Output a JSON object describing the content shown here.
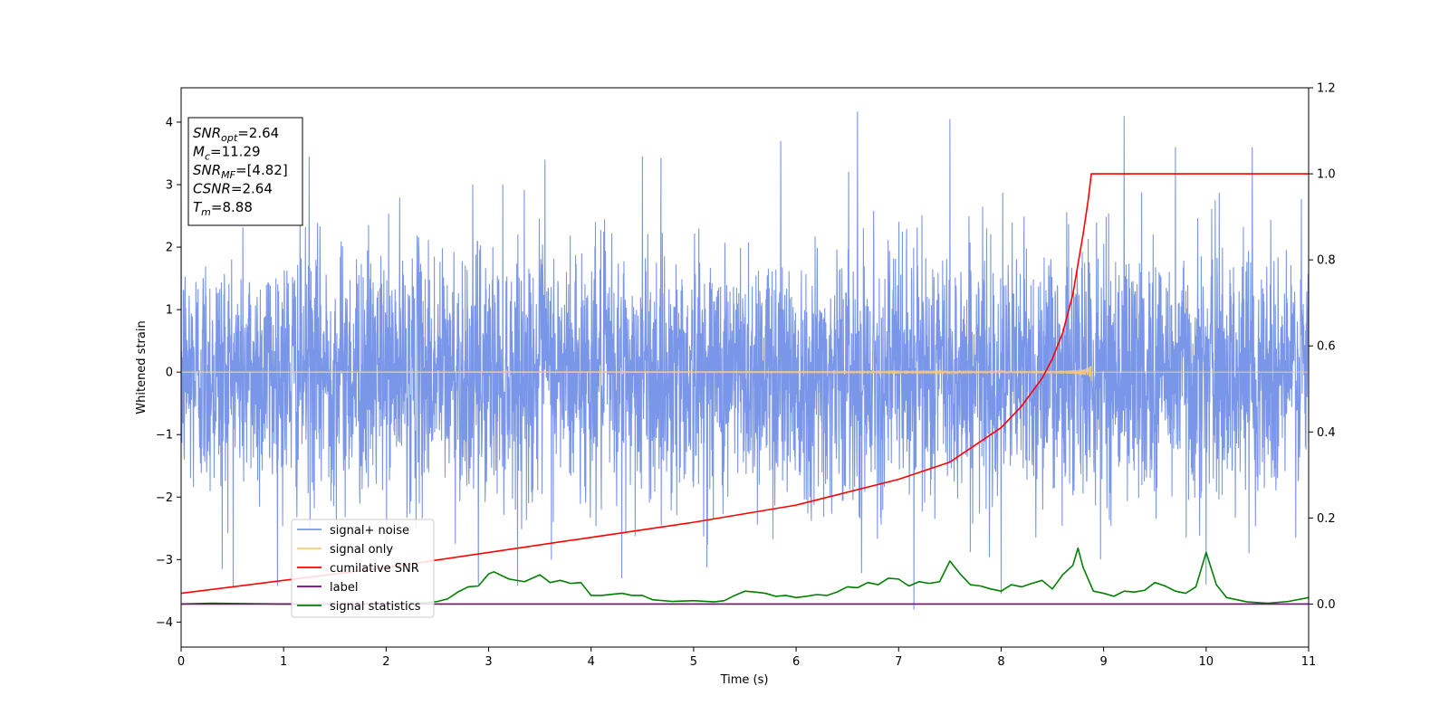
{
  "chart_data": {
    "type": "line",
    "xlabel": "Time (s)",
    "ylabel_left": "Whitened strain",
    "ylabel_right": "",
    "xlim": [
      0,
      11
    ],
    "ylim_left": [
      -4.4,
      4.55
    ],
    "ylim_right": [
      -0.1,
      1.2
    ],
    "x_ticks": [
      0,
      1,
      2,
      3,
      4,
      5,
      6,
      7,
      8,
      9,
      10,
      11
    ],
    "y_left_ticks": [
      -4,
      -3,
      -2,
      -1,
      0,
      1,
      2,
      3,
      4
    ],
    "y_right_ticks": [
      0.0,
      0.2,
      0.4,
      0.6,
      0.8,
      1.0,
      1.2
    ],
    "x_tick_labels": [
      "0",
      "1",
      "2",
      "3",
      "4",
      "5",
      "6",
      "7",
      "8",
      "9",
      "10",
      "11"
    ],
    "y_left_tick_labels": [
      "−4",
      "−3",
      "−2",
      "−1",
      "0",
      "1",
      "2",
      "3",
      "4"
    ],
    "y_right_tick_labels": [
      "0.0",
      "0.2",
      "0.4",
      "0.6",
      "0.8",
      "1.0",
      "1.2"
    ],
    "grid": false,
    "legend_position": "lower-left",
    "annotation_box": {
      "lines": [
        {
          "sym": "SNR",
          "sub": "opt",
          "rest": "=2.64"
        },
        {
          "sym": "M",
          "sub": "c",
          "rest": "=11.29"
        },
        {
          "sym": "SNR",
          "sub": "MF",
          "rest": "=[4.82]"
        },
        {
          "sym": "CSNR",
          "sub": "",
          "rest": "=2.64"
        },
        {
          "sym": "T",
          "sub": "m",
          "rest": "=8.88"
        }
      ]
    },
    "series": [
      {
        "name": "signal+ noise",
        "color": "#7a96e8",
        "axis": "left",
        "kind": "noise",
        "x_range": [
          0,
          11
        ],
        "std": 1.0,
        "y_min": -3.8,
        "y_max": 4.17,
        "peaks": [
          [
            6.6,
            4.17
          ],
          [
            9.2,
            4.1
          ],
          [
            7.5,
            4.05
          ],
          [
            10.45,
            3.6
          ],
          [
            9.7,
            3.6
          ],
          [
            1.25,
            3.45
          ],
          [
            4.5,
            3.45
          ],
          [
            5.85,
            3.7
          ],
          [
            3.55,
            3.4
          ],
          [
            7.15,
            -3.8
          ],
          [
            4.3,
            -3.3
          ],
          [
            8.0,
            -3.55
          ],
          [
            10.0,
            -3.4
          ],
          [
            2.9,
            -3.4
          ],
          [
            0.4,
            -3.15
          ]
        ]
      },
      {
        "name": "signal only",
        "color": "#fdc87a",
        "axis": "left",
        "kind": "chirp",
        "merger_time": 8.88,
        "peak_amplitude": 0.55
      },
      {
        "name": "cumilative SNR",
        "color": "#ff0000",
        "axis": "right",
        "x": [
          0,
          1,
          2,
          3,
          4,
          5,
          6,
          7,
          7.5,
          8,
          8.2,
          8.4,
          8.5,
          8.6,
          8.7,
          8.8,
          8.85,
          8.88,
          9,
          10,
          11
        ],
        "y": [
          0.025,
          0.055,
          0.085,
          0.12,
          0.155,
          0.19,
          0.23,
          0.29,
          0.33,
          0.41,
          0.46,
          0.525,
          0.57,
          0.63,
          0.72,
          0.86,
          0.94,
          1.0,
          1.0,
          1.0,
          1.0
        ]
      },
      {
        "name": "label",
        "color": "#800080",
        "axis": "right",
        "x": [
          0,
          11
        ],
        "y": [
          0,
          0
        ]
      },
      {
        "name": "signal statistics",
        "color": "#008000",
        "axis": "right",
        "x": [
          0,
          0.3,
          1.0,
          1.5,
          2.0,
          2.2,
          2.4,
          2.5,
          2.6,
          2.7,
          2.8,
          2.9,
          3.0,
          3.05,
          3.2,
          3.35,
          3.5,
          3.6,
          3.7,
          3.8,
          3.9,
          4.0,
          4.1,
          4.3,
          4.4,
          4.5,
          4.6,
          4.8,
          5.0,
          5.2,
          5.3,
          5.4,
          5.5,
          5.6,
          5.7,
          5.8,
          5.9,
          6.0,
          6.1,
          6.2,
          6.3,
          6.4,
          6.5,
          6.6,
          6.7,
          6.8,
          6.9,
          7.0,
          7.1,
          7.2,
          7.3,
          7.4,
          7.5,
          7.6,
          7.7,
          7.8,
          7.9,
          8.0,
          8.1,
          8.2,
          8.3,
          8.4,
          8.5,
          8.6,
          8.7,
          8.75,
          8.8,
          8.9,
          9.0,
          9.1,
          9.2,
          9.3,
          9.4,
          9.5,
          9.6,
          9.7,
          9.8,
          9.9,
          10.0,
          10.1,
          10.2,
          10.4,
          10.6,
          10.8,
          11.0
        ],
        "y": [
          0.0,
          0.002,
          0.0,
          0.0,
          0.0,
          0.002,
          0.003,
          0.006,
          0.012,
          0.028,
          0.04,
          0.042,
          0.07,
          0.075,
          0.058,
          0.052,
          0.068,
          0.05,
          0.055,
          0.048,
          0.05,
          0.02,
          0.02,
          0.025,
          0.02,
          0.02,
          0.01,
          0.006,
          0.008,
          0.005,
          0.008,
          0.02,
          0.03,
          0.028,
          0.025,
          0.018,
          0.02,
          0.015,
          0.018,
          0.022,
          0.02,
          0.028,
          0.04,
          0.038,
          0.05,
          0.045,
          0.06,
          0.058,
          0.042,
          0.052,
          0.048,
          0.052,
          0.1,
          0.07,
          0.045,
          0.042,
          0.035,
          0.03,
          0.045,
          0.04,
          0.048,
          0.055,
          0.035,
          0.068,
          0.09,
          0.13,
          0.085,
          0.03,
          0.025,
          0.018,
          0.03,
          0.028,
          0.032,
          0.05,
          0.042,
          0.03,
          0.025,
          0.04,
          0.12,
          0.045,
          0.015,
          0.005,
          0.002,
          0.006,
          0.015
        ]
      }
    ]
  }
}
